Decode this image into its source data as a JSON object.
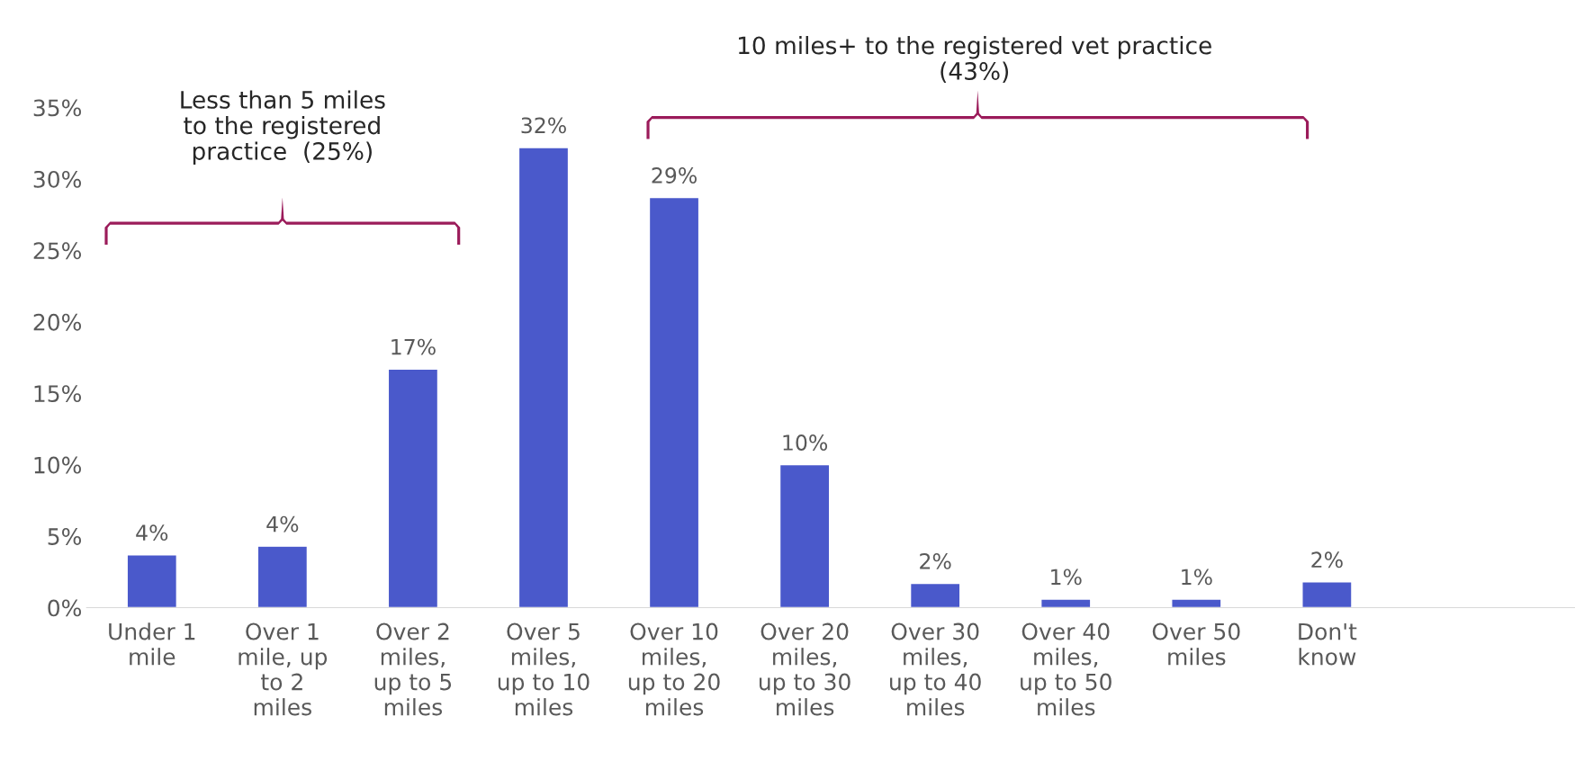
{
  "chart_data": {
    "type": "bar",
    "categories": [
      "Under 1\nmile",
      "Over 1\nmile, up\nto 2\nmiles",
      "Over 2\nmiles,\nup to 5\nmiles",
      "Over 5\nmiles,\nup to 10\nmiles",
      "Over 10\nmiles,\nup to 20\nmiles",
      "Over 20\nmiles,\nup to 30\nmiles",
      "Over 30\nmiles,\nup to 40\nmiles",
      "Over 40\nmiles,\nup to 50\nmiles",
      "Over 50\nmiles",
      "Don't\nknow"
    ],
    "values": [
      3.7,
      4.3,
      16.7,
      32.2,
      28.7,
      10,
      1.7,
      0.6,
      0.6,
      1.8
    ],
    "value_labels": [
      "4%",
      "4%",
      "17%",
      "32%",
      "29%",
      "10%",
      "2%",
      "1%",
      "1%",
      "2%"
    ],
    "color": "#4a59cb",
    "ylim": [
      0,
      35
    ],
    "yticks": [
      {
        "value": 0,
        "label": "0%"
      },
      {
        "value": 5,
        "label": "5%"
      },
      {
        "value": 10,
        "label": "10%"
      },
      {
        "value": 15,
        "label": "15%"
      },
      {
        "value": 20,
        "label": "20%"
      },
      {
        "value": 25,
        "label": "25%"
      },
      {
        "value": 30,
        "label": "30%"
      },
      {
        "value": 35,
        "label": "35%"
      }
    ],
    "grid": false,
    "annotations": [
      "Less than 5 miles\nto the registered\npractice  (25%)",
      "10 miles+ to the registered vet practice\n(43%)"
    ]
  }
}
